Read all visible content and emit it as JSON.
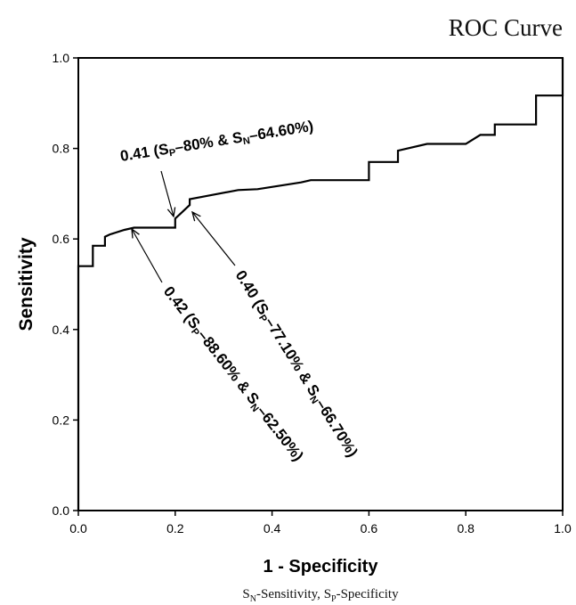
{
  "chart_data": {
    "type": "line",
    "title": "ROC Curve",
    "xlabel": "1 - Specificity",
    "ylabel": "Sensitivity",
    "xlim": [
      0,
      1
    ],
    "ylim": [
      0,
      1
    ],
    "xticks": [
      "0.0",
      "0.2",
      "0.4",
      "0.6",
      "0.8",
      "1.0"
    ],
    "yticks": [
      "0.0",
      "0.2",
      "0.4",
      "0.6",
      "0.8",
      "1.0"
    ],
    "grid": false,
    "legend": null,
    "footnote": {
      "s1": "S",
      "s1_sub": "N",
      "t1": "-Sensitivity, ",
      "s2": "S",
      "s2_sub": "P",
      "t2": "-Specificity"
    },
    "series": [
      {
        "x": [
          0,
          0,
          0.03,
          0.03,
          0.055,
          0.055,
          0.065,
          0.095,
          0.115,
          0.2,
          0.2,
          0.215,
          0.225,
          0.23,
          0.23,
          0.265,
          0.33,
          0.37,
          0.46,
          0.48,
          0.6,
          0.6,
          0.66,
          0.66,
          0.72,
          0.8,
          0.83,
          0.86,
          0.86,
          0.945,
          0.945,
          1.0,
          1.0
        ],
        "y": [
          0,
          0.54,
          0.54,
          0.585,
          0.585,
          0.605,
          0.61,
          0.62,
          0.625,
          0.625,
          0.645,
          0.66,
          0.67,
          0.675,
          0.688,
          0.695,
          0.708,
          0.71,
          0.725,
          0.73,
          0.73,
          0.77,
          0.77,
          0.795,
          0.81,
          0.81,
          0.83,
          0.83,
          0.853,
          0.853,
          0.917,
          0.917,
          1.0
        ]
      }
    ],
    "annotations": [
      {
        "value": "0.41",
        "sp_label": "S",
        "sp_sub": "P",
        "sp_value": "–80%",
        "sn_label": "S",
        "sn_sub": "N",
        "sn_value": "–64.60%",
        "point": [
          0.2,
          0.645
        ]
      },
      {
        "value": "0.42",
        "sp_label": "S",
        "sp_sub": "P",
        "sp_value": "–88.60%",
        "sn_label": "S",
        "sn_sub": "N",
        "sn_value": "–62.50%",
        "point": [
          0.115,
          0.625
        ]
      },
      {
        "value": "0.40",
        "sp_label": "S",
        "sp_sub": "P",
        "sp_value": "–77.10%",
        "sn_label": "S",
        "sn_sub": "N",
        "sn_value": "–66.70%",
        "point": [
          0.235,
          0.675
        ]
      }
    ]
  }
}
